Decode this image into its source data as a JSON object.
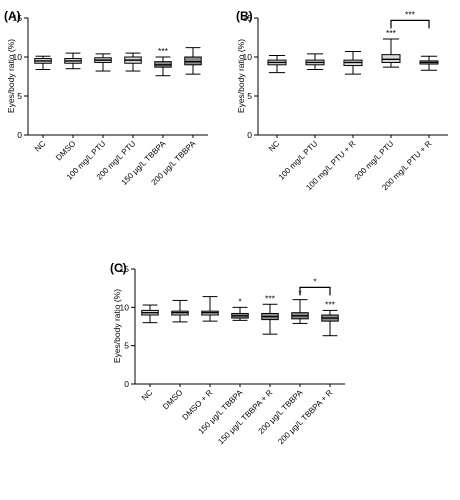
{
  "figure": {
    "panels": [
      "A",
      "B",
      "C"
    ]
  },
  "chart_data": [
    {
      "type": "boxplot",
      "panel_label": "(A)",
      "ylabel": "Eyes/body ratio (%)",
      "ylim": [
        0,
        15
      ],
      "yticks": [
        0,
        5,
        10,
        15
      ],
      "categories": [
        "NC",
        "DMSO",
        "100 mg/L PTU",
        "200 mg/L PTU",
        "150 μg/L TBBPA",
        "200 μg/L TBBPA"
      ],
      "boxes": [
        {
          "min": 8.4,
          "q1": 9.2,
          "median": 9.5,
          "q3": 9.8,
          "max": 10.1,
          "fill": "#d9d9d9",
          "sig": ""
        },
        {
          "min": 8.5,
          "q1": 9.2,
          "median": 9.5,
          "q3": 9.8,
          "max": 10.5,
          "fill": "#d9d9d9",
          "sig": ""
        },
        {
          "min": 8.2,
          "q1": 9.3,
          "median": 9.6,
          "q3": 9.9,
          "max": 10.4,
          "fill": "#d9d9d9",
          "sig": ""
        },
        {
          "min": 8.2,
          "q1": 9.2,
          "median": 9.6,
          "q3": 10.0,
          "max": 10.5,
          "fill": "#d9d9d9",
          "sig": ""
        },
        {
          "min": 7.6,
          "q1": 8.7,
          "median": 9.0,
          "q3": 9.4,
          "max": 10.0,
          "fill": "#8c8c8c",
          "sig": "***"
        },
        {
          "min": 7.8,
          "q1": 9.0,
          "median": 9.4,
          "q3": 10.0,
          "max": 11.2,
          "fill": "#8c8c8c",
          "sig": ""
        }
      ],
      "brackets": []
    },
    {
      "type": "boxplot",
      "panel_label": "(B)",
      "ylabel": "Eyes/body ratio (%)",
      "ylim": [
        0,
        15
      ],
      "yticks": [
        0,
        5,
        10,
        15
      ],
      "categories": [
        "NC",
        "100 mg/L PTU",
        "100 mg/L PTU + R",
        "200 mg/L PTU",
        "200 mg/L PTU + R"
      ],
      "boxes": [
        {
          "min": 8.0,
          "q1": 9.0,
          "median": 9.3,
          "q3": 9.6,
          "max": 10.2,
          "fill": "#d9d9d9",
          "sig": ""
        },
        {
          "min": 8.4,
          "q1": 9.0,
          "median": 9.3,
          "q3": 9.6,
          "max": 10.4,
          "fill": "#d9d9d9",
          "sig": ""
        },
        {
          "min": 7.8,
          "q1": 8.9,
          "median": 9.3,
          "q3": 9.6,
          "max": 10.7,
          "fill": "#d9d9d9",
          "sig": ""
        },
        {
          "min": 8.7,
          "q1": 9.3,
          "median": 9.7,
          "q3": 10.3,
          "max": 12.3,
          "fill": "#d9d9d9",
          "sig": "***"
        },
        {
          "min": 8.3,
          "q1": 9.1,
          "median": 9.3,
          "q3": 9.5,
          "max": 10.1,
          "fill": "#d9d9d9",
          "sig": ""
        }
      ],
      "brackets": [
        {
          "from": 3,
          "to": 4,
          "y": 14.7,
          "label": "***"
        }
      ]
    },
    {
      "type": "boxplot",
      "panel_label": "(C)",
      "ylabel": "Eyes/body ratio (%)",
      "ylim": [
        0,
        15
      ],
      "yticks": [
        0,
        5,
        10,
        15
      ],
      "categories": [
        "NC",
        "DMSO",
        "DMSO + R",
        "150 μg/L TBBPA",
        "150 μg/L TBBPA + R",
        "200 μg/L TBBPA",
        "200 μg/L TBBPA + R"
      ],
      "boxes": [
        {
          "min": 8.0,
          "q1": 9.0,
          "median": 9.3,
          "q3": 9.6,
          "max": 10.3,
          "fill": "#d9d9d9",
          "sig": ""
        },
        {
          "min": 8.1,
          "q1": 9.0,
          "median": 9.3,
          "q3": 9.5,
          "max": 10.9,
          "fill": "#d9d9d9",
          "sig": ""
        },
        {
          "min": 8.2,
          "q1": 9.0,
          "median": 9.3,
          "q3": 9.5,
          "max": 11.4,
          "fill": "#d9d9d9",
          "sig": ""
        },
        {
          "min": 8.3,
          "q1": 8.6,
          "median": 8.9,
          "q3": 9.2,
          "max": 10.0,
          "fill": "#8c8c8c",
          "sig": "*"
        },
        {
          "min": 6.5,
          "q1": 8.4,
          "median": 8.8,
          "q3": 9.2,
          "max": 10.4,
          "fill": "#8c8c8c",
          "sig": "***"
        },
        {
          "min": 7.9,
          "q1": 8.5,
          "median": 8.9,
          "q3": 9.3,
          "max": 11.0,
          "fill": "#8c8c8c",
          "sig": "*"
        },
        {
          "min": 6.3,
          "q1": 8.2,
          "median": 8.6,
          "q3": 9.0,
          "max": 9.6,
          "fill": "#8c8c8c",
          "sig": "***"
        }
      ],
      "brackets": [
        {
          "from": 5,
          "to": 6,
          "y": 12.6,
          "label": "*"
        }
      ]
    }
  ]
}
